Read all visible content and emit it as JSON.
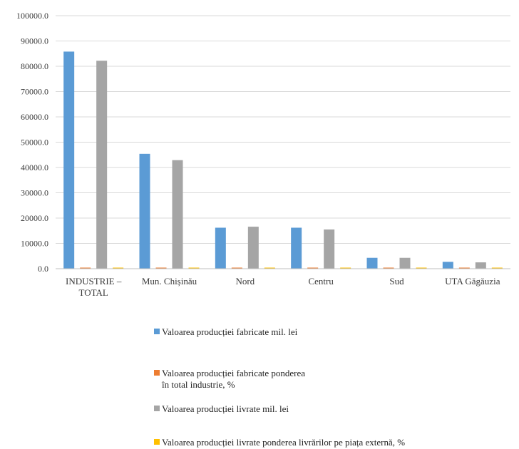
{
  "chart_data": {
    "type": "bar",
    "title": "",
    "xlabel": "",
    "ylabel": "",
    "ylim": [
      0,
      100000
    ],
    "ytick_step": 10000,
    "ytick_labels": [
      "0.0",
      "10000.0",
      "20000.0",
      "30000.0",
      "40000.0",
      "50000.0",
      "60000.0",
      "70000.0",
      "80000.0",
      "90000.0",
      "100000.0"
    ],
    "grid": true,
    "legend_position": "bottom",
    "categories": [
      "INDUSTRIE –\nTOTAL",
      "Mun. Chișinău",
      "Nord",
      "Centru",
      "Sud",
      "UTA Găgăuzia"
    ],
    "series": [
      {
        "name": "Valoarea producției fabricate mil. lei",
        "color": "#5b9bd5",
        "values": [
          85800,
          45400,
          16200,
          16200,
          4300,
          2700
        ]
      },
      {
        "name": "Valoarea producției fabricate ponderea\nîn total industrie, %",
        "color": "#ed7d31",
        "values": [
          100,
          53,
          19,
          19,
          5,
          3
        ]
      },
      {
        "name": "Valoarea producției livrate mil. lei",
        "color": "#a5a5a5",
        "values": [
          82200,
          42900,
          16600,
          15500,
          4300,
          2500
        ]
      },
      {
        "name": "Valoarea producției livrate ponderea livrărilor pe piața externă, %",
        "color": "#ffc000",
        "values": [
          30,
          27,
          41,
          35,
          38,
          29
        ]
      }
    ]
  }
}
